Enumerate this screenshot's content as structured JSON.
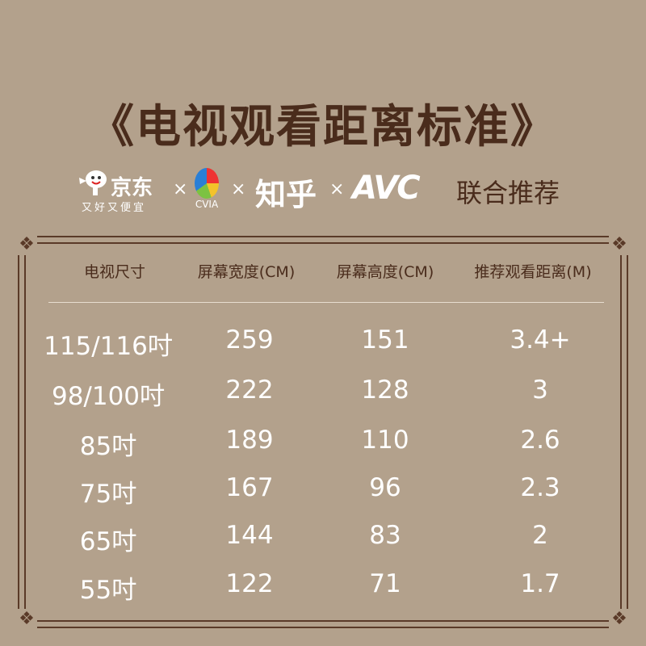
{
  "title": "《电视观看距离标准》",
  "logos": {
    "jd_name": "京东",
    "jd_slogan": "又好又便宜",
    "cvia": "CVIA",
    "zhihu": "知乎",
    "avc": "AVC",
    "separator": "×",
    "joint": "联合推荐"
  },
  "colors": {
    "background": "#b3a18c",
    "title": "#4a2c1c",
    "table_text": "#ffffff"
  },
  "table": {
    "headers": [
      "电视尺寸",
      "屏幕宽度(CM)",
      "屏幕高度(CM)",
      "推荐观看距离(M)"
    ],
    "rows": [
      [
        "115/116吋",
        "259",
        "151",
        "3.4+"
      ],
      [
        "98/100吋",
        "222",
        "128",
        "3"
      ],
      [
        "85吋",
        "189",
        "110",
        "2.6"
      ],
      [
        "75吋",
        "167",
        "96",
        "2.3"
      ],
      [
        "65吋",
        "144",
        "83",
        "2"
      ],
      [
        "55吋",
        "122",
        "71",
        "1.7"
      ]
    ]
  }
}
